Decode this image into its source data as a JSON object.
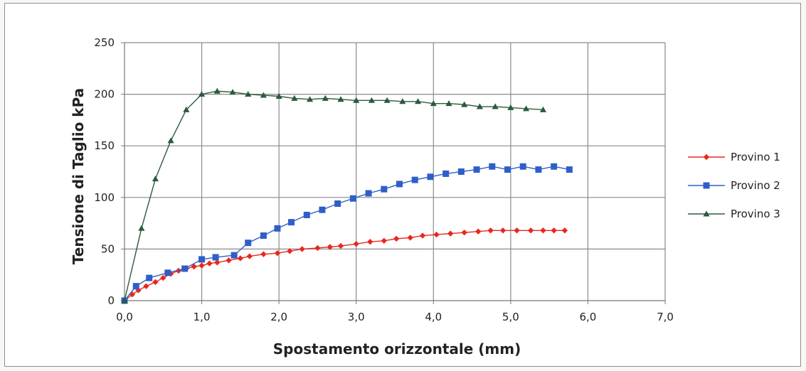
{
  "chart_data": {
    "type": "line",
    "title": "",
    "xlabel": "Spostamento orizzontale (mm)",
    "ylabel": "Tensione di Taglio  kPa",
    "xlim": [
      0,
      7
    ],
    "ylim": [
      0,
      250
    ],
    "x_ticks": [
      0,
      1,
      2,
      3,
      4,
      5,
      6,
      7
    ],
    "x_tick_labels": [
      "0,0",
      "1,0",
      "2,0",
      "3,0",
      "4,0",
      "5,0",
      "6,0",
      "7,0"
    ],
    "y_ticks": [
      0,
      50,
      100,
      150,
      200,
      250
    ],
    "y_tick_labels": [
      "0",
      "50",
      "100",
      "150",
      "200",
      "250"
    ],
    "grid": true,
    "legend_position": "right",
    "series": [
      {
        "name": "Provino 1",
        "color": "#e8281e",
        "marker": "diamond",
        "x": [
          0.0,
          0.1,
          0.18,
          0.28,
          0.4,
          0.5,
          0.6,
          0.7,
          0.8,
          0.9,
          1.0,
          1.1,
          1.2,
          1.35,
          1.5,
          1.62,
          1.8,
          1.98,
          2.14,
          2.3,
          2.5,
          2.66,
          2.8,
          3.0,
          3.18,
          3.36,
          3.52,
          3.7,
          3.86,
          4.04,
          4.22,
          4.4,
          4.58,
          4.74,
          4.9,
          5.08,
          5.26,
          5.42,
          5.56,
          5.7
        ],
        "y": [
          0,
          6,
          10,
          14,
          18,
          22,
          26,
          29,
          31,
          33,
          34,
          36,
          37,
          39,
          41,
          43,
          45,
          46,
          48,
          50,
          51,
          52,
          53,
          55,
          57,
          58,
          60,
          61,
          63,
          64,
          65,
          66,
          67,
          68,
          68,
          68,
          68,
          68,
          68,
          68
        ]
      },
      {
        "name": "Provino 2",
        "color": "#2f5ec9",
        "marker": "square",
        "x": [
          0.0,
          0.15,
          0.32,
          0.56,
          0.78,
          1.0,
          1.18,
          1.42,
          1.6,
          1.8,
          1.98,
          2.16,
          2.36,
          2.56,
          2.76,
          2.96,
          3.16,
          3.36,
          3.56,
          3.76,
          3.96,
          4.16,
          4.36,
          4.56,
          4.76,
          4.96,
          5.16,
          5.36,
          5.56,
          5.76
        ],
        "y": [
          0,
          14,
          22,
          27,
          31,
          40,
          42,
          44,
          56,
          63,
          70,
          76,
          83,
          88,
          94,
          99,
          104,
          108,
          113,
          117,
          120,
          123,
          125,
          127,
          130,
          127,
          130,
          127,
          130,
          127
        ]
      },
      {
        "name": "Provino 3",
        "color": "#2d5a3e",
        "marker": "triangle",
        "x": [
          0.0,
          0.22,
          0.4,
          0.6,
          0.8,
          1.0,
          1.2,
          1.4,
          1.6,
          1.8,
          2.0,
          2.2,
          2.4,
          2.6,
          2.8,
          3.0,
          3.2,
          3.4,
          3.6,
          3.8,
          4.0,
          4.2,
          4.4,
          4.6,
          4.8,
          5.0,
          5.2,
          5.42
        ],
        "y": [
          0,
          70,
          118,
          155,
          185,
          200,
          203,
          202,
          200,
          199,
          198,
          196,
          195,
          196,
          195,
          194,
          194,
          194,
          193,
          193,
          191,
          191,
          190,
          188,
          188,
          187,
          186,
          185
        ]
      }
    ]
  }
}
